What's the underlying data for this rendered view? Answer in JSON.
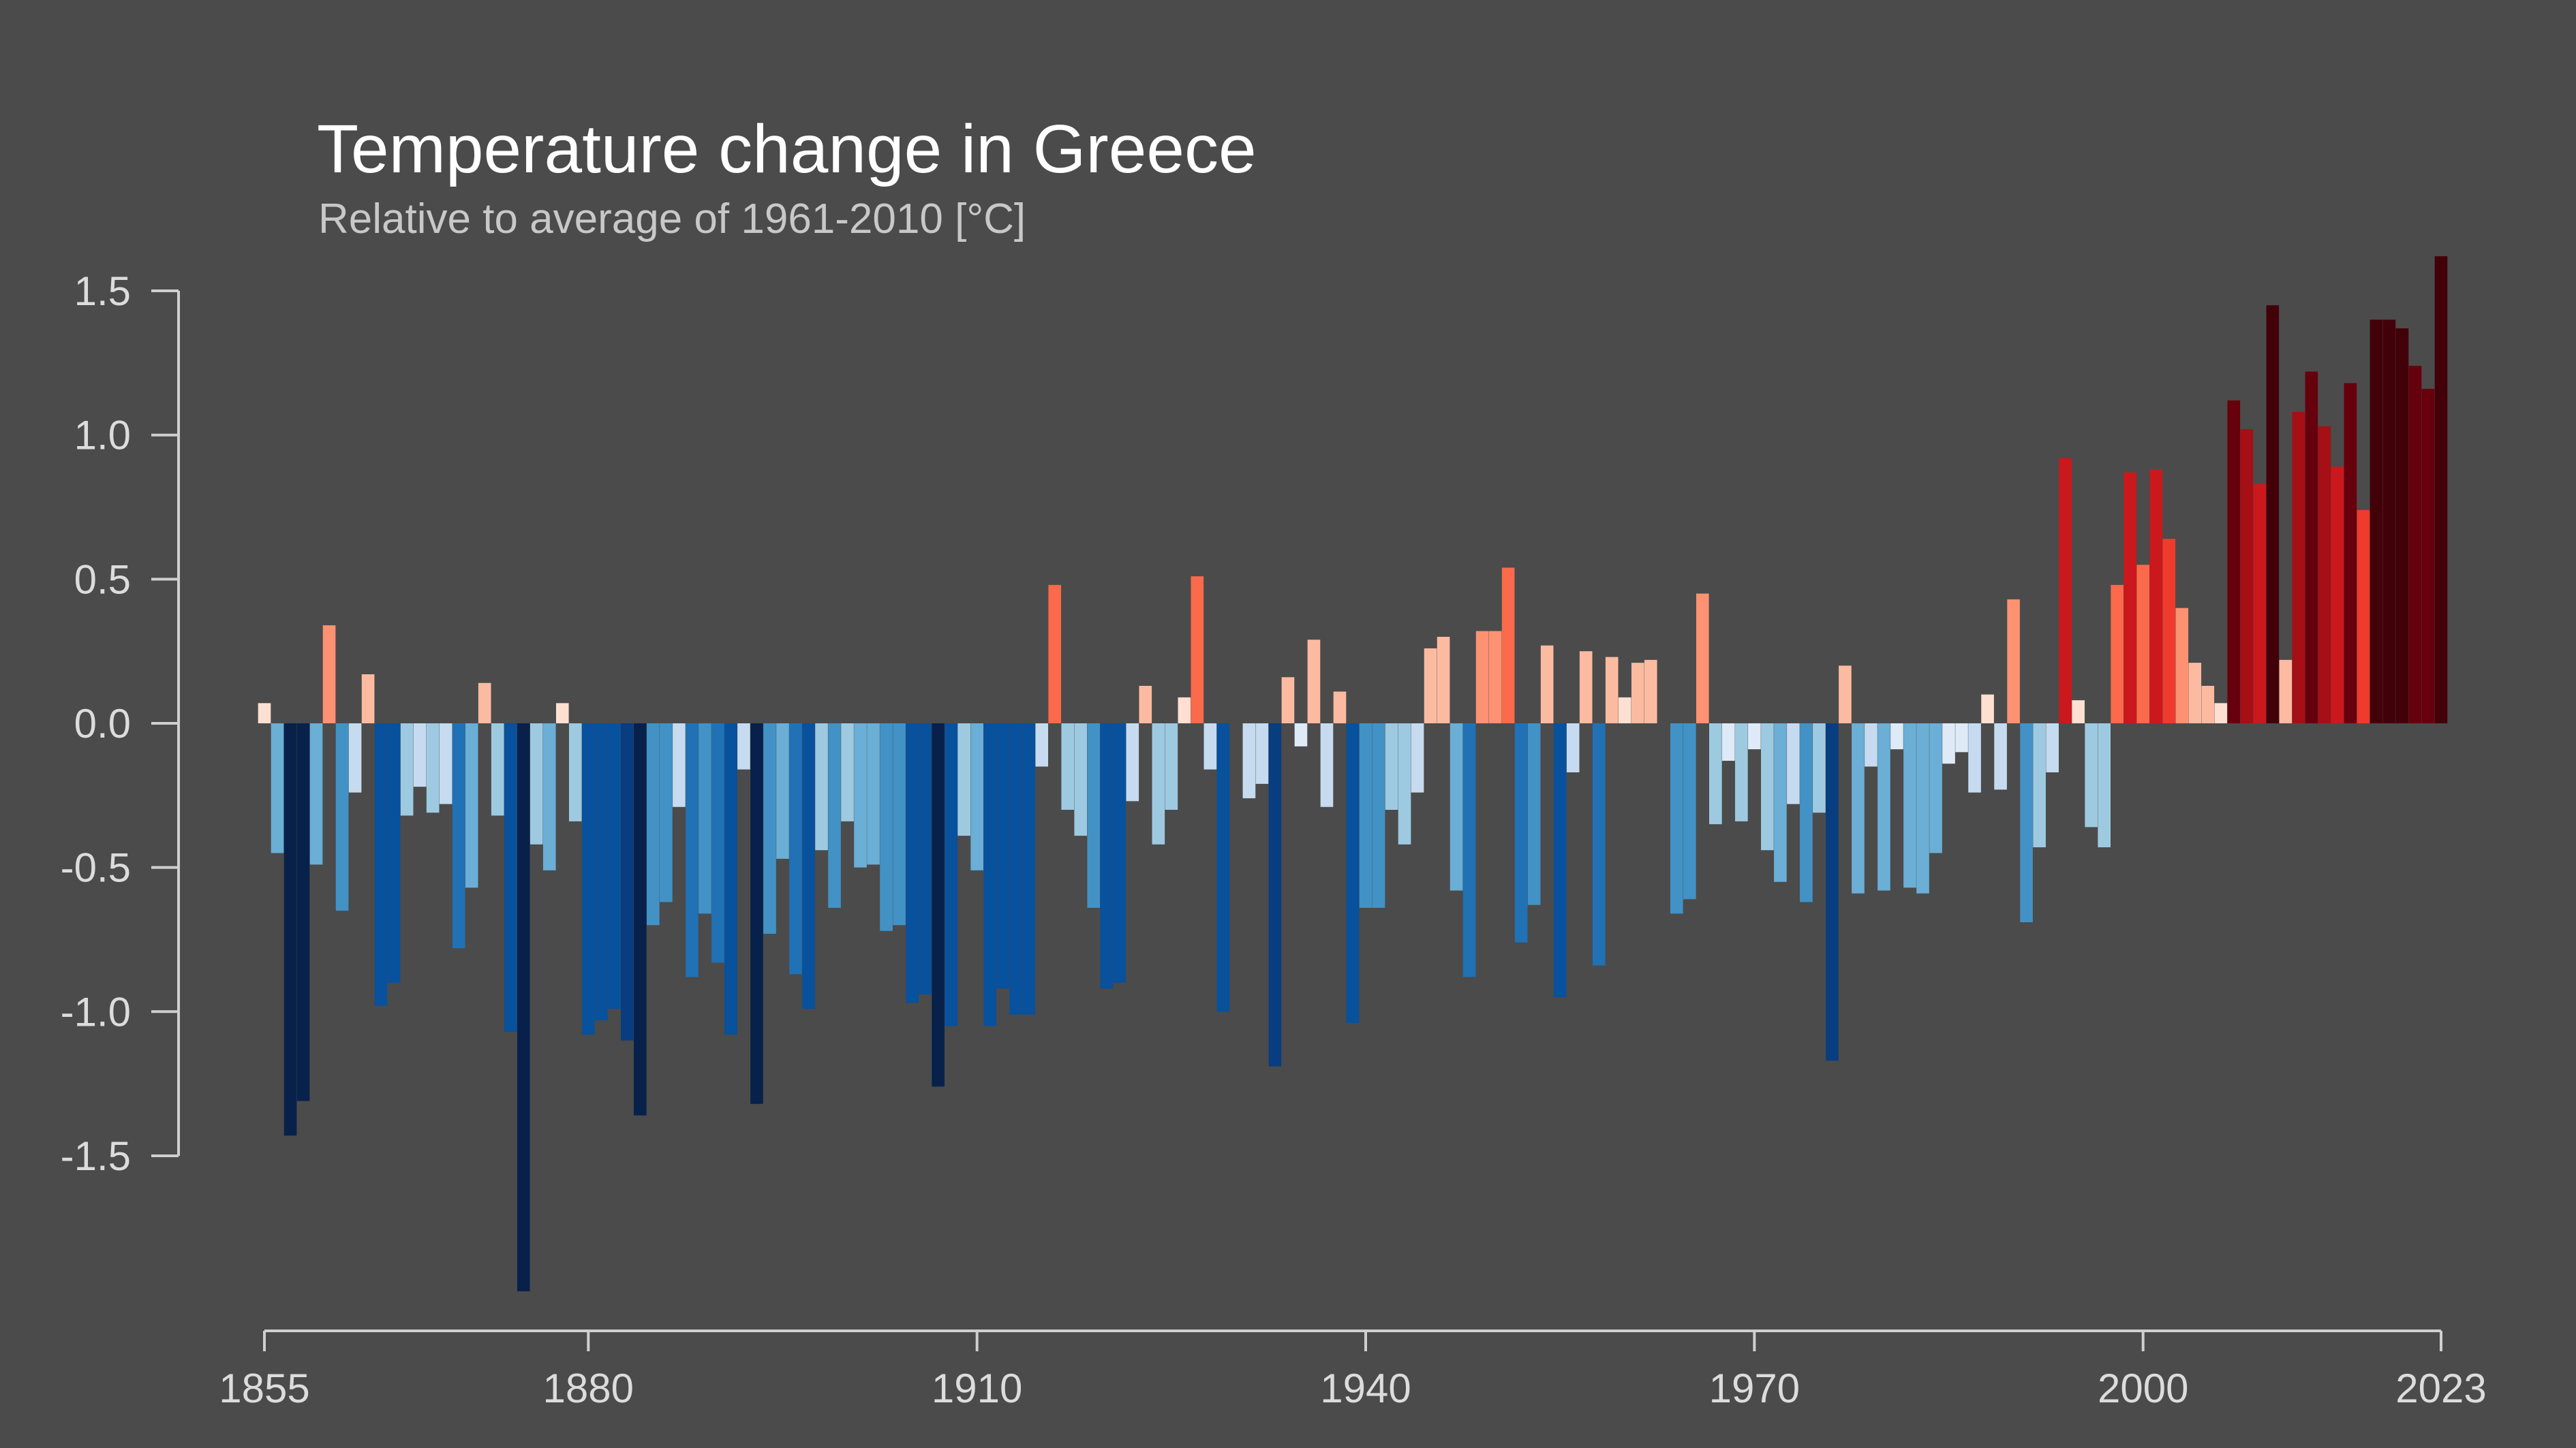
{
  "title": "Temperature change in Greece",
  "subtitle": "Relative to average of 1961-2010  [°C]",
  "colors": {
    "background": "#4b4b4b",
    "axis": "#cfcfcf",
    "tick_text": "#dcdcdc",
    "title": "#ffffff",
    "subtitle": "#c8c8c8"
  },
  "chart_data": {
    "type": "bar",
    "title": "Temperature change in Greece",
    "subtitle": "Relative to average of 1961-2010  [°C]",
    "xlabel": "",
    "ylabel": "",
    "x_start": 1855,
    "x_end": 2023,
    "ylim": [
      -1.9,
      1.6
    ],
    "x_ticks": [
      1855,
      1880,
      1910,
      1940,
      1970,
      2000,
      2023
    ],
    "y_ticks": [
      1.5,
      1.0,
      0.5,
      0.0,
      -0.5,
      -1.0,
      -1.5
    ],
    "y_tick_labels": [
      "1.5",
      "1.0",
      "0.5",
      "0.0",
      "-0.5",
      "-1.0",
      "-1.5"
    ],
    "grid": false,
    "legend": "none",
    "color_scale": "warming stripes: dark blue (cold) to dark red (warm)",
    "years": [
      1855,
      1856,
      1857,
      1858,
      1859,
      1860,
      1861,
      1862,
      1863,
      1864,
      1865,
      1866,
      1867,
      1868,
      1869,
      1870,
      1871,
      1872,
      1873,
      1874,
      1875,
      1876,
      1877,
      1878,
      1879,
      1880,
      1881,
      1882,
      1883,
      1884,
      1885,
      1886,
      1887,
      1888,
      1889,
      1890,
      1891,
      1892,
      1893,
      1894,
      1895,
      1896,
      1897,
      1898,
      1899,
      1900,
      1901,
      1902,
      1903,
      1904,
      1905,
      1906,
      1907,
      1908,
      1909,
      1910,
      1911,
      1912,
      1913,
      1914,
      1915,
      1916,
      1917,
      1918,
      1919,
      1920,
      1921,
      1922,
      1923,
      1924,
      1925,
      1926,
      1927,
      1928,
      1929,
      1930,
      1931,
      1932,
      1933,
      1934,
      1935,
      1936,
      1937,
      1938,
      1939,
      1940,
      1941,
      1942,
      1943,
      1944,
      1945,
      1946,
      1947,
      1948,
      1949,
      1950,
      1951,
      1952,
      1953,
      1954,
      1955,
      1956,
      1957,
      1958,
      1959,
      1960,
      1961,
      1962,
      1963,
      1964,
      1965,
      1966,
      1967,
      1968,
      1969,
      1970,
      1971,
      1972,
      1973,
      1974,
      1975,
      1976,
      1977,
      1978,
      1979,
      1980,
      1981,
      1982,
      1983,
      1984,
      1985,
      1986,
      1987,
      1988,
      1989,
      1990,
      1991,
      1992,
      1993,
      1994,
      1995,
      1996,
      1997,
      1998,
      1999,
      2000,
      2001,
      2002,
      2003,
      2004,
      2005,
      2006,
      2007,
      2008,
      2009,
      2010,
      2011,
      2012,
      2013,
      2014,
      2015,
      2016,
      2017,
      2018,
      2019,
      2020,
      2021,
      2022,
      2023
    ],
    "values": [
      0.07,
      -0.45,
      -1.43,
      -1.31,
      -0.49,
      0.34,
      -0.65,
      -0.24,
      0.17,
      -0.98,
      -0.9,
      -0.32,
      -0.22,
      -0.31,
      -0.28,
      -0.78,
      -0.57,
      0.14,
      -0.32,
      -1.07,
      -1.97,
      -0.42,
      -0.51,
      0.07,
      -0.34,
      -1.08,
      -1.03,
      -0.99,
      -1.1,
      -1.36,
      -0.7,
      -0.62,
      -0.29,
      -0.88,
      -0.66,
      -0.83,
      -1.08,
      -0.16,
      -1.32,
      -0.73,
      -0.47,
      -0.87,
      -0.99,
      -0.44,
      -0.64,
      -0.34,
      -0.5,
      -0.49,
      -0.72,
      -0.7,
      -0.97,
      -0.94,
      -1.26,
      -1.05,
      -0.39,
      -0.51,
      -1.05,
      -0.92,
      -1.01,
      -1.01,
      -0.15,
      0.48,
      -0.3,
      -0.39,
      -0.64,
      -0.92,
      -0.9,
      -0.27,
      0.13,
      -0.42,
      -0.3,
      0.09,
      0.51,
      -0.16,
      -1.0,
      0.0,
      -0.26,
      -0.21,
      -1.19,
      0.16,
      -0.08,
      0.29,
      -0.29,
      0.11,
      -1.04,
      -0.64,
      -0.64,
      -0.3,
      -0.42,
      -0.24,
      0.26,
      0.3,
      -0.58,
      -0.88,
      0.32,
      0.32,
      0.54,
      -0.76,
      -0.63,
      0.27,
      -0.95,
      -0.17,
      0.25,
      -0.84,
      0.23,
      0.09,
      0.21,
      0.22,
      0.0,
      -0.66,
      -0.61,
      0.45,
      -0.35,
      -0.13,
      -0.34,
      -0.09,
      -0.44,
      -0.55,
      -0.28,
      -0.62,
      -0.31,
      -1.17,
      0.2,
      -0.59,
      -0.15,
      -0.58,
      -0.09,
      -0.57,
      -0.59,
      -0.45,
      -0.14,
      -0.1,
      -0.24,
      0.1,
      -0.23,
      0.43,
      -0.69,
      -0.43,
      -0.17,
      0.92,
      0.08,
      -0.36,
      -0.43,
      0.48,
      0.87,
      0.55,
      0.88,
      0.64,
      0.4,
      0.21,
      0.13,
      0.07,
      1.12,
      1.02,
      0.83,
      1.45,
      0.22,
      1.08,
      1.22,
      1.03,
      0.89,
      1.18,
      0.74,
      1.4,
      1.4,
      1.37,
      1.24,
      1.16,
      1.62
    ]
  }
}
